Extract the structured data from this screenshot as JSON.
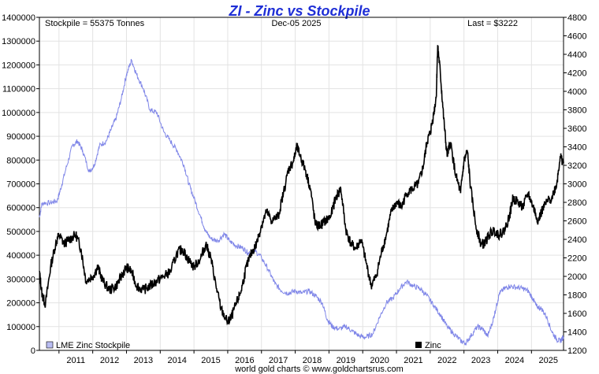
{
  "chart_data": {
    "type": "line",
    "title": "ZI - Zinc vs Stockpile",
    "header_left": "Stockpile = 55375 Tonnes",
    "header_center": "Dec-05  2025",
    "header_right": "Last = $3222",
    "credit": "world gold charts © www.goldchartsrus.com",
    "x_range": [
      2010.42,
      2025.95
    ],
    "x_ticks": [
      "2011",
      "2012",
      "2013",
      "2014",
      "2015",
      "2016",
      "2017",
      "2018",
      "2019",
      "2020",
      "2021",
      "2022",
      "2023",
      "2024",
      "2025"
    ],
    "y_left": {
      "range": [
        0,
        1400000
      ],
      "ticks": [
        "0",
        "100000",
        "200000",
        "300000",
        "400000",
        "500000",
        "600000",
        "700000",
        "800000",
        "900000",
        "1000000",
        "1100000",
        "1200000",
        "1300000",
        "1400000"
      ]
    },
    "y_right": {
      "range": [
        1200,
        4800
      ],
      "ticks": [
        "1200",
        "1400",
        "1600",
        "1800",
        "2000",
        "2200",
        "2400",
        "2600",
        "2800",
        "3000",
        "3200",
        "3400",
        "3600",
        "3800",
        "4000",
        "4200",
        "4400",
        "4600",
        "4800"
      ]
    },
    "grid": true,
    "legend_position": "bottom",
    "series": [
      {
        "name": "LME Zinc Stockpile",
        "axis": "left",
        "color": "#7f86e8",
        "points": [
          [
            2010.42,
            560000
          ],
          [
            2010.5,
            620000
          ],
          [
            2010.75,
            620000
          ],
          [
            2010.95,
            630000
          ],
          [
            2011.05,
            680000
          ],
          [
            2011.2,
            760000
          ],
          [
            2011.4,
            860000
          ],
          [
            2011.55,
            880000
          ],
          [
            2011.7,
            840000
          ],
          [
            2011.9,
            750000
          ],
          [
            2012.05,
            780000
          ],
          [
            2012.2,
            860000
          ],
          [
            2012.4,
            880000
          ],
          [
            2012.55,
            930000
          ],
          [
            2012.7,
            980000
          ],
          [
            2012.85,
            1060000
          ],
          [
            2013.0,
            1160000
          ],
          [
            2013.15,
            1220000
          ],
          [
            2013.3,
            1160000
          ],
          [
            2013.5,
            1100000
          ],
          [
            2013.7,
            1010000
          ],
          [
            2013.9,
            1000000
          ],
          [
            2014.1,
            920000
          ],
          [
            2014.3,
            880000
          ],
          [
            2014.5,
            840000
          ],
          [
            2014.7,
            780000
          ],
          [
            2014.85,
            700000
          ],
          [
            2015.0,
            640000
          ],
          [
            2015.2,
            560000
          ],
          [
            2015.35,
            500000
          ],
          [
            2015.5,
            470000
          ],
          [
            2015.7,
            460000
          ],
          [
            2015.9,
            490000
          ],
          [
            2016.05,
            460000
          ],
          [
            2016.25,
            440000
          ],
          [
            2016.45,
            430000
          ],
          [
            2016.6,
            410000
          ],
          [
            2016.8,
            420000
          ],
          [
            2017.0,
            390000
          ],
          [
            2017.2,
            340000
          ],
          [
            2017.4,
            280000
          ],
          [
            2017.6,
            250000
          ],
          [
            2017.8,
            240000
          ],
          [
            2018.0,
            250000
          ],
          [
            2018.2,
            240000
          ],
          [
            2018.4,
            250000
          ],
          [
            2018.6,
            230000
          ],
          [
            2018.8,
            200000
          ],
          [
            2018.95,
            130000
          ],
          [
            2019.1,
            100000
          ],
          [
            2019.3,
            90000
          ],
          [
            2019.5,
            100000
          ],
          [
            2019.7,
            80000
          ],
          [
            2019.9,
            60000
          ],
          [
            2020.1,
            55000
          ],
          [
            2020.3,
            70000
          ],
          [
            2020.5,
            140000
          ],
          [
            2020.7,
            200000
          ],
          [
            2020.9,
            220000
          ],
          [
            2021.1,
            260000
          ],
          [
            2021.3,
            290000
          ],
          [
            2021.5,
            270000
          ],
          [
            2021.7,
            260000
          ],
          [
            2021.9,
            230000
          ],
          [
            2022.1,
            190000
          ],
          [
            2022.3,
            150000
          ],
          [
            2022.5,
            100000
          ],
          [
            2022.7,
            70000
          ],
          [
            2022.9,
            40000
          ],
          [
            2023.05,
            30000
          ],
          [
            2023.2,
            60000
          ],
          [
            2023.4,
            100000
          ],
          [
            2023.55,
            90000
          ],
          [
            2023.7,
            60000
          ],
          [
            2023.85,
            120000
          ],
          [
            2023.95,
            180000
          ],
          [
            2024.05,
            240000
          ],
          [
            2024.2,
            260000
          ],
          [
            2024.35,
            270000
          ],
          [
            2024.55,
            265000
          ],
          [
            2024.75,
            260000
          ],
          [
            2024.9,
            250000
          ],
          [
            2025.05,
            215000
          ],
          [
            2025.15,
            185000
          ],
          [
            2025.3,
            175000
          ],
          [
            2025.45,
            140000
          ],
          [
            2025.6,
            80000
          ],
          [
            2025.75,
            45000
          ],
          [
            2025.85,
            40000
          ],
          [
            2025.95,
            55375
          ]
        ]
      },
      {
        "name": "Zinc",
        "axis": "right",
        "color": "#000000",
        "points": [
          [
            2010.42,
            2050
          ],
          [
            2010.5,
            1800
          ],
          [
            2010.6,
            1700
          ],
          [
            2010.75,
            2100
          ],
          [
            2010.9,
            2350
          ],
          [
            2011.0,
            2450
          ],
          [
            2011.15,
            2350
          ],
          [
            2011.3,
            2400
          ],
          [
            2011.5,
            2450
          ],
          [
            2011.65,
            2300
          ],
          [
            2011.8,
            1950
          ],
          [
            2012.0,
            2000
          ],
          [
            2012.15,
            2100
          ],
          [
            2012.3,
            1950
          ],
          [
            2012.5,
            1850
          ],
          [
            2012.7,
            1900
          ],
          [
            2012.85,
            2000
          ],
          [
            2013.0,
            2100
          ],
          [
            2013.15,
            2050
          ],
          [
            2013.3,
            1900
          ],
          [
            2013.5,
            1850
          ],
          [
            2013.7,
            1900
          ],
          [
            2013.9,
            1950
          ],
          [
            2014.1,
            2000
          ],
          [
            2014.3,
            2050
          ],
          [
            2014.5,
            2250
          ],
          [
            2014.65,
            2300
          ],
          [
            2014.8,
            2200
          ],
          [
            2015.0,
            2100
          ],
          [
            2015.2,
            2200
          ],
          [
            2015.35,
            2350
          ],
          [
            2015.5,
            2200
          ],
          [
            2015.65,
            1900
          ],
          [
            2015.8,
            1650
          ],
          [
            2016.0,
            1500
          ],
          [
            2016.1,
            1550
          ],
          [
            2016.25,
            1700
          ],
          [
            2016.4,
            1850
          ],
          [
            2016.55,
            2100
          ],
          [
            2016.7,
            2250
          ],
          [
            2016.85,
            2350
          ],
          [
            2017.0,
            2550
          ],
          [
            2017.15,
            2700
          ],
          [
            2017.3,
            2600
          ],
          [
            2017.5,
            2650
          ],
          [
            2017.65,
            2900
          ],
          [
            2017.8,
            3150
          ],
          [
            2017.95,
            3250
          ],
          [
            2018.05,
            3400
          ],
          [
            2018.15,
            3300
          ],
          [
            2018.3,
            3150
          ],
          [
            2018.45,
            2950
          ],
          [
            2018.6,
            2550
          ],
          [
            2018.75,
            2550
          ],
          [
            2018.9,
            2600
          ],
          [
            2019.05,
            2650
          ],
          [
            2019.2,
            2850
          ],
          [
            2019.35,
            2950
          ],
          [
            2019.5,
            2500
          ],
          [
            2019.65,
            2350
          ],
          [
            2019.8,
            2300
          ],
          [
            2019.95,
            2400
          ],
          [
            2020.1,
            2150
          ],
          [
            2020.25,
            1900
          ],
          [
            2020.4,
            2000
          ],
          [
            2020.55,
            2250
          ],
          [
            2020.7,
            2450
          ],
          [
            2020.85,
            2700
          ],
          [
            2021.0,
            2800
          ],
          [
            2021.15,
            2750
          ],
          [
            2021.3,
            2900
          ],
          [
            2021.5,
            2950
          ],
          [
            2021.65,
            3000
          ],
          [
            2021.8,
            3200
          ],
          [
            2021.9,
            3450
          ],
          [
            2022.0,
            3550
          ],
          [
            2022.1,
            3750
          ],
          [
            2022.18,
            3950
          ],
          [
            2022.22,
            4500
          ],
          [
            2022.3,
            4200
          ],
          [
            2022.4,
            3700
          ],
          [
            2022.5,
            3300
          ],
          [
            2022.6,
            3450
          ],
          [
            2022.75,
            3100
          ],
          [
            2022.9,
            2900
          ],
          [
            2023.0,
            3250
          ],
          [
            2023.1,
            3350
          ],
          [
            2023.2,
            2950
          ],
          [
            2023.35,
            2550
          ],
          [
            2023.5,
            2350
          ],
          [
            2023.6,
            2350
          ],
          [
            2023.75,
            2450
          ],
          [
            2023.9,
            2500
          ],
          [
            2024.05,
            2450
          ],
          [
            2024.2,
            2500
          ],
          [
            2024.35,
            2650
          ],
          [
            2024.45,
            2850
          ],
          [
            2024.6,
            2800
          ],
          [
            2024.75,
            2750
          ],
          [
            2024.9,
            2900
          ],
          [
            2025.05,
            2750
          ],
          [
            2025.2,
            2600
          ],
          [
            2025.3,
            2700
          ],
          [
            2025.45,
            2800
          ],
          [
            2025.6,
            2850
          ],
          [
            2025.75,
            3000
          ],
          [
            2025.85,
            3300
          ],
          [
            2025.95,
            3222
          ]
        ]
      }
    ]
  }
}
